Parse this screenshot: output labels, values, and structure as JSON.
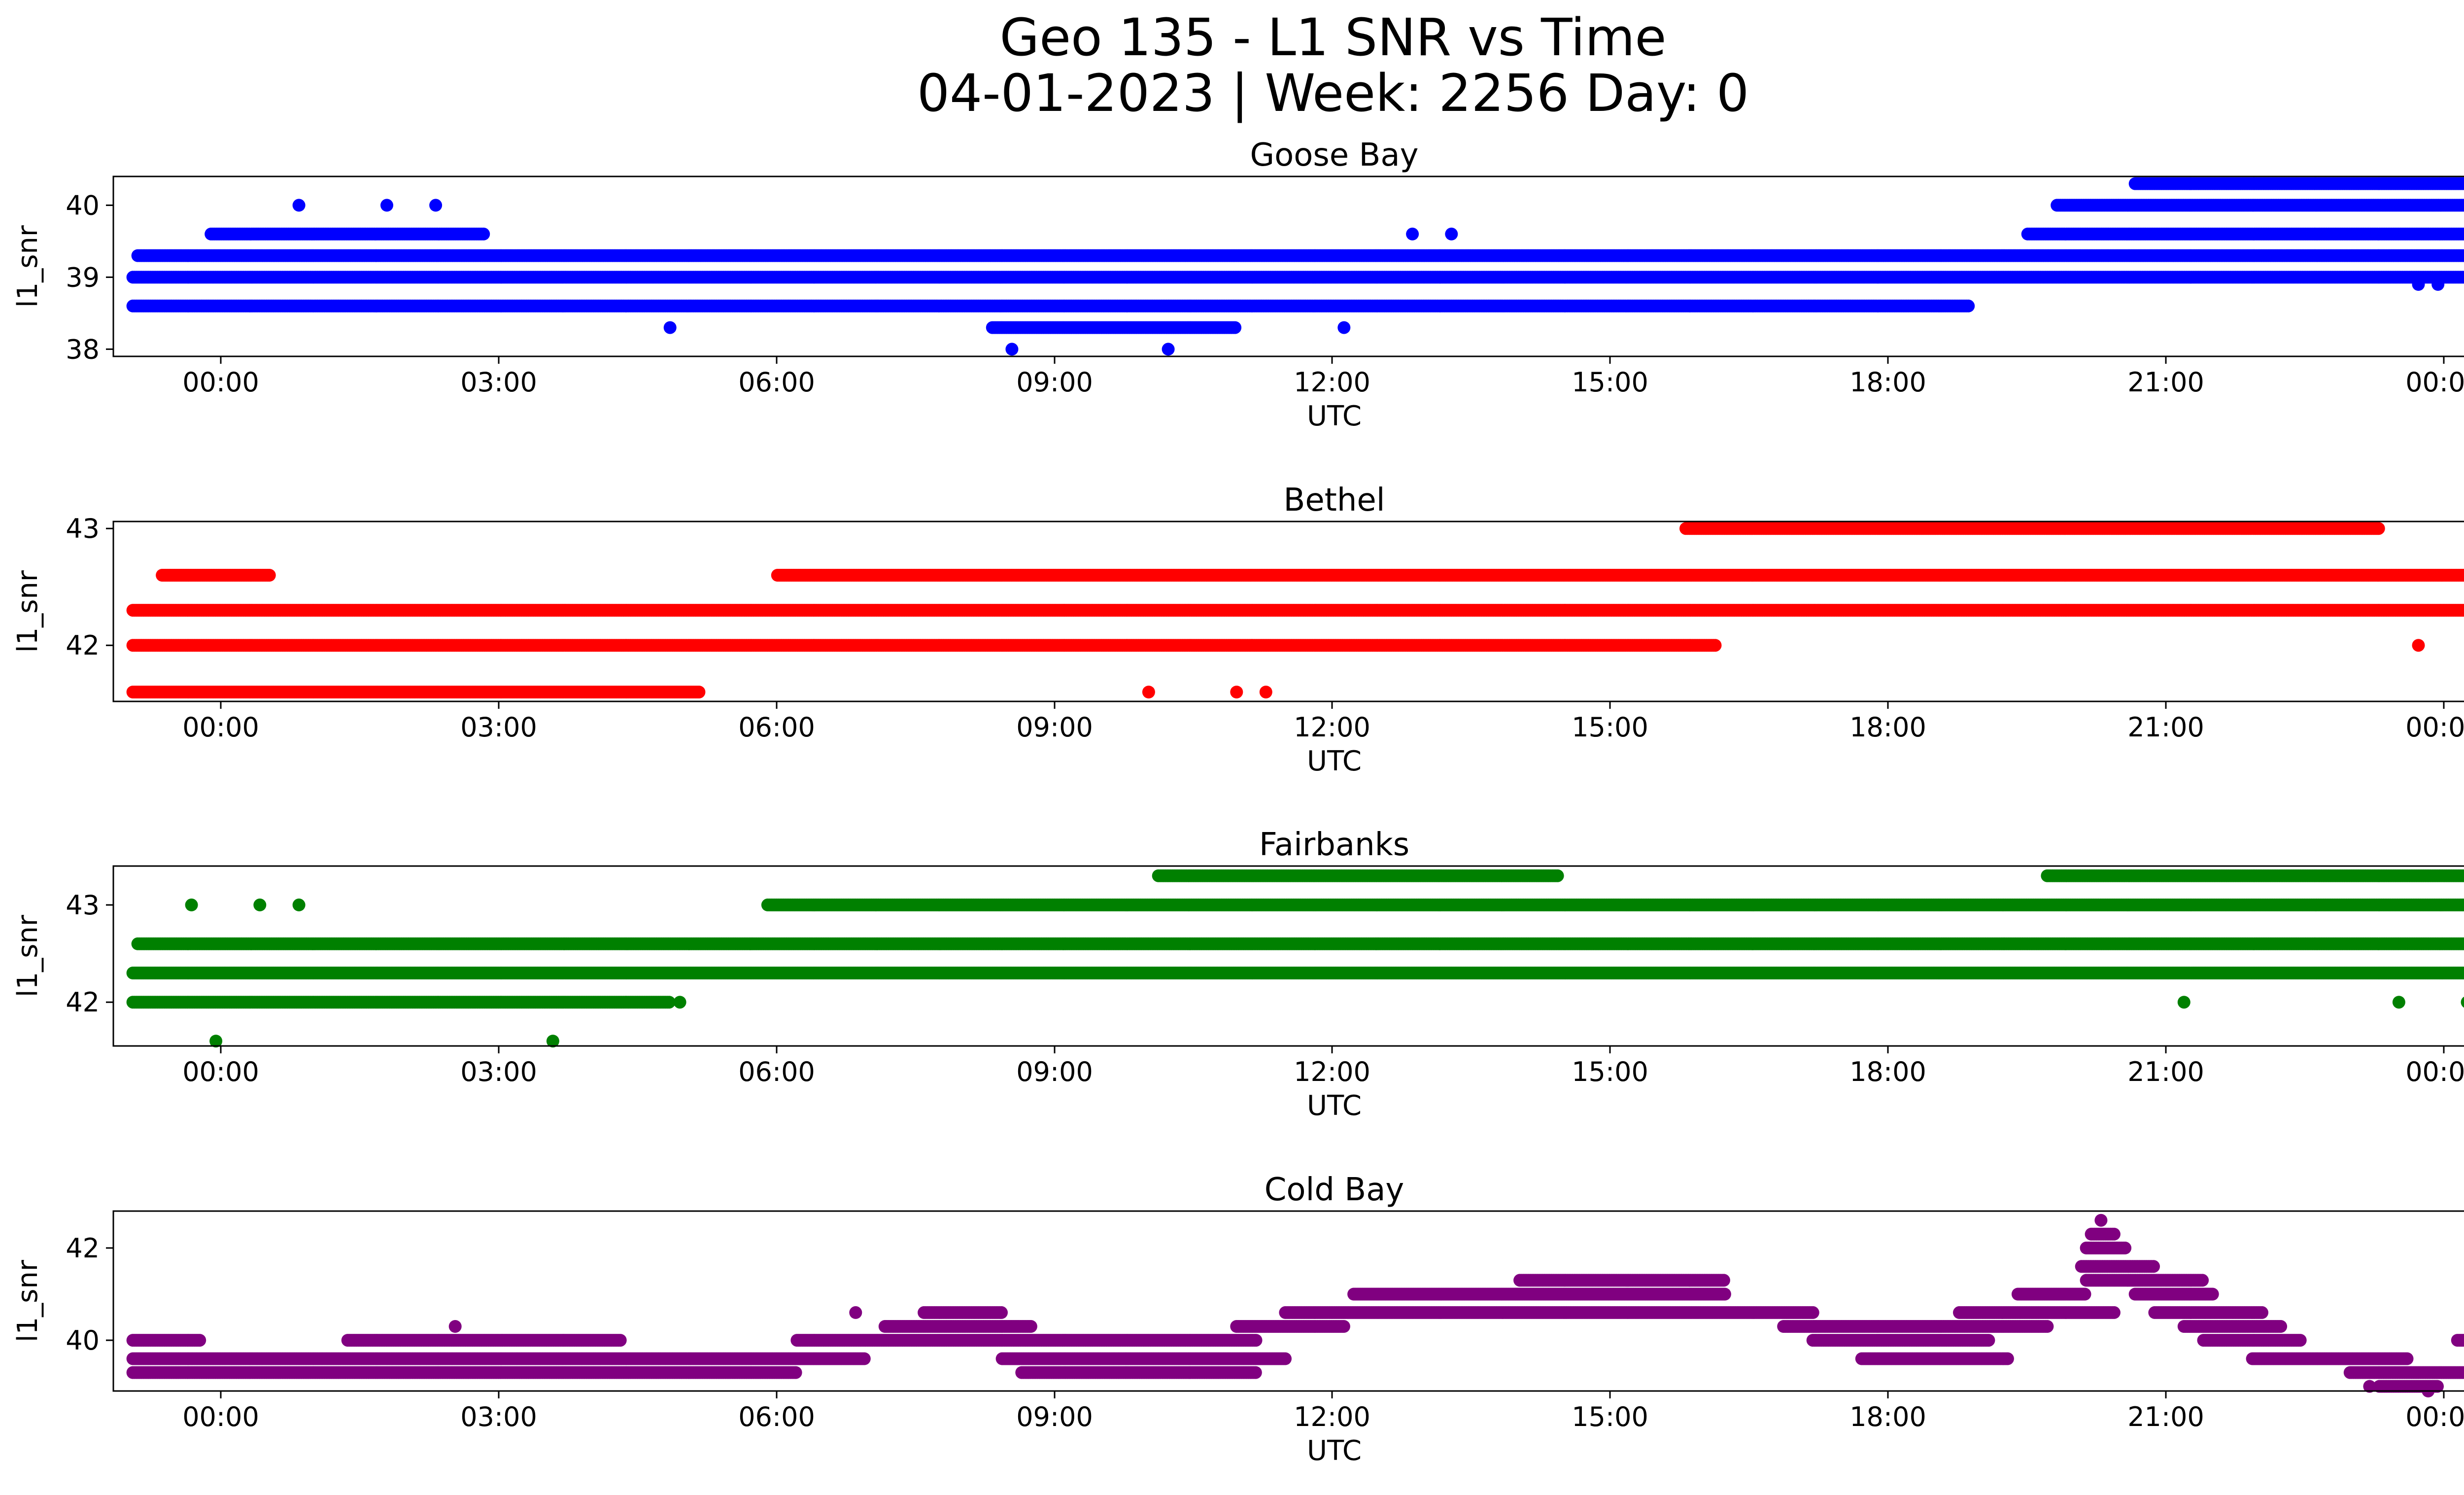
{
  "figure": {
    "title_line1": "Geo 135 - L1 SNR vs Time",
    "title_line2": "04-01-2023 | Week: 2256 Day: 0"
  },
  "chart_data": [
    {
      "type": "scatter",
      "title": "Goose Bay",
      "xlabel": "UTC",
      "ylabel": "l1_snr",
      "color": "#0000ff",
      "xlim": [
        -0.2,
        24.8
      ],
      "ylim": [
        37.9,
        40.4
      ],
      "xticks": [
        "00:00",
        "03:00",
        "06:00",
        "09:00",
        "12:00",
        "15:00",
        "18:00",
        "21:00",
        "00:00"
      ],
      "yticks": [
        38,
        39,
        40
      ],
      "series": [
        {
          "y": 39.0,
          "segments": [
            [
              0.0,
              24.0
            ]
          ]
        },
        {
          "y": 39.3,
          "segments": [
            [
              0.05,
              24.0
            ]
          ]
        },
        {
          "y": 38.6,
          "segments": [
            [
              0.0,
              18.8
            ]
          ]
        },
        {
          "y": 39.6,
          "segments": [
            [
              0.8,
              3.6
            ],
            [
              19.4,
              24.0
            ]
          ]
        },
        {
          "y": 40.0,
          "segments": [
            [
              19.7,
              24.0
            ]
          ]
        },
        {
          "y": 40.3,
          "segments": [
            [
              20.5,
              23.9
            ]
          ]
        },
        {
          "y": 38.3,
          "segments": [
            [
              8.8,
              11.3
            ]
          ]
        }
      ],
      "points": [
        [
          1.7,
          40.0
        ],
        [
          2.6,
          40.0
        ],
        [
          3.1,
          40.0
        ],
        [
          5.5,
          38.3
        ],
        [
          9.0,
          38.0
        ],
        [
          10.6,
          38.0
        ],
        [
          12.4,
          38.3
        ],
        [
          13.1,
          39.6
        ],
        [
          13.5,
          39.6
        ],
        [
          23.4,
          38.9
        ],
        [
          23.6,
          38.9
        ]
      ]
    },
    {
      "type": "scatter",
      "title": "Bethel",
      "xlabel": "UTC",
      "ylabel": "l1_snr",
      "color": "#ff0000",
      "xlim": [
        -0.2,
        24.8
      ],
      "ylim": [
        41.52,
        43.06
      ],
      "xticks": [
        "00:00",
        "03:00",
        "06:00",
        "09:00",
        "12:00",
        "15:00",
        "18:00",
        "21:00",
        "00:00"
      ],
      "yticks": [
        42,
        43
      ],
      "series": [
        {
          "y": 42.3,
          "segments": [
            [
              0.0,
              24.0
            ]
          ]
        },
        {
          "y": 42.0,
          "segments": [
            [
              0.0,
              16.2
            ]
          ]
        },
        {
          "y": 42.6,
          "segments": [
            [
              0.3,
              1.4
            ],
            [
              6.6,
              24.0
            ]
          ]
        },
        {
          "y": 41.6,
          "segments": [
            [
              0.0,
              5.8
            ]
          ]
        },
        {
          "y": 43.0,
          "segments": [
            [
              15.9,
              23.0
            ]
          ]
        }
      ],
      "points": [
        [
          10.4,
          41.6
        ],
        [
          11.3,
          41.6
        ],
        [
          11.6,
          41.6
        ],
        [
          23.4,
          42.0
        ]
      ]
    },
    {
      "type": "scatter",
      "title": "Fairbanks",
      "xlabel": "UTC",
      "ylabel": "l1_snr",
      "color": "#008000",
      "xlim": [
        -0.2,
        24.8
      ],
      "ylim": [
        41.55,
        43.4
      ],
      "xticks": [
        "00:00",
        "03:00",
        "06:00",
        "09:00",
        "12:00",
        "15:00",
        "18:00",
        "21:00",
        "00:00"
      ],
      "yticks": [
        42,
        43
      ],
      "series": [
        {
          "y": 42.3,
          "segments": [
            [
              0.0,
              24.0
            ]
          ]
        },
        {
          "y": 42.6,
          "segments": [
            [
              0.05,
              24.0
            ]
          ]
        },
        {
          "y": 42.0,
          "segments": [
            [
              0.0,
              5.5
            ]
          ]
        },
        {
          "y": 43.0,
          "segments": [
            [
              6.5,
              24.0
            ]
          ]
        },
        {
          "y": 43.3,
          "segments": [
            [
              10.5,
              14.6
            ],
            [
              19.6,
              24.0
            ]
          ]
        }
      ],
      "points": [
        [
          0.6,
          43.0
        ],
        [
          1.3,
          43.0
        ],
        [
          1.7,
          43.0
        ],
        [
          0.85,
          41.6
        ],
        [
          4.3,
          41.6
        ],
        [
          5.6,
          42.0
        ],
        [
          21.0,
          42.0
        ],
        [
          23.2,
          42.0
        ],
        [
          23.9,
          42.0
        ]
      ]
    },
    {
      "type": "scatter",
      "title": "Cold Bay",
      "xlabel": "UTC",
      "ylabel": "l1_snr",
      "color": "#800080",
      "xlim": [
        -0.2,
        24.8
      ],
      "ylim": [
        38.9,
        42.8
      ],
      "xticks": [
        "00:00",
        "03:00",
        "06:00",
        "09:00",
        "12:00",
        "15:00",
        "18:00",
        "21:00",
        "00:00"
      ],
      "yticks": [
        40,
        42
      ],
      "series": [
        {
          "y": 39.3,
          "segments": [
            [
              0.0,
              6.8
            ],
            [
              9.1,
              11.5
            ],
            [
              22.7,
              24.0
            ]
          ]
        },
        {
          "y": 39.6,
          "segments": [
            [
              0.0,
              7.5
            ],
            [
              8.9,
              11.8
            ],
            [
              17.7,
              19.2
            ],
            [
              21.7,
              23.3
            ]
          ]
        },
        {
          "y": 40.0,
          "segments": [
            [
              0.0,
              0.7
            ],
            [
              2.2,
              5.0
            ],
            [
              6.8,
              11.5
            ],
            [
              17.2,
              19.0
            ],
            [
              21.2,
              22.2
            ],
            [
              23.8,
              24.0
            ]
          ]
        },
        {
          "y": 40.3,
          "segments": [
            [
              7.7,
              9.2
            ],
            [
              11.3,
              12.4
            ],
            [
              16.9,
              19.6
            ],
            [
              21.0,
              22.0
            ]
          ]
        },
        {
          "y": 40.6,
          "segments": [
            [
              8.1,
              8.9
            ],
            [
              11.8,
              17.2
            ],
            [
              18.7,
              20.3
            ],
            [
              20.7,
              21.8
            ]
          ]
        },
        {
          "y": 41.0,
          "segments": [
            [
              12.5,
              16.3
            ],
            [
              19.3,
              20.0
            ],
            [
              20.5,
              21.3
            ]
          ]
        },
        {
          "y": 41.3,
          "segments": [
            [
              14.2,
              16.3
            ],
            [
              20.0,
              21.2
            ]
          ]
        },
        {
          "y": 41.6,
          "segments": [
            [
              19.95,
              20.7
            ]
          ]
        },
        {
          "y": 42.0,
          "segments": [
            [
              20.0,
              20.4
            ]
          ]
        },
        {
          "y": 42.3,
          "segments": [
            [
              20.05,
              20.3
            ]
          ]
        },
        {
          "y": 39.0,
          "segments": [
            [
              23.0,
              23.6
            ]
          ]
        }
      ],
      "points": [
        [
          3.3,
          40.3
        ],
        [
          7.4,
          40.6
        ],
        [
          20.15,
          42.6
        ],
        [
          22.9,
          39.0
        ],
        [
          23.5,
          38.9
        ]
      ]
    }
  ]
}
